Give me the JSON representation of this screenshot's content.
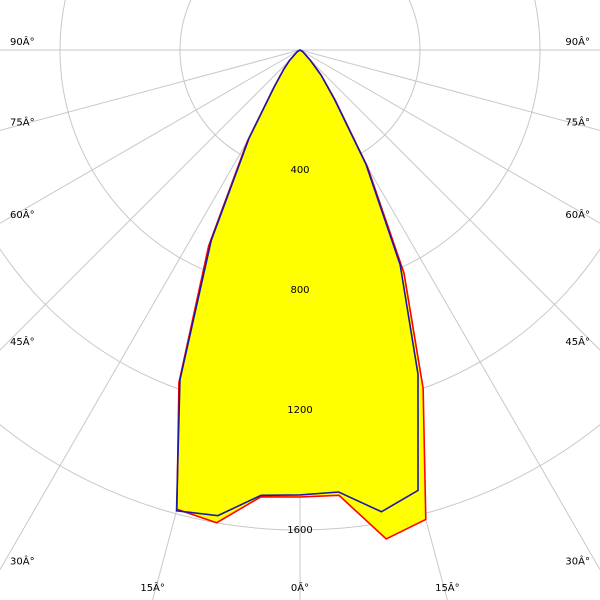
{
  "chart_data": {
    "type": "polar",
    "theta": [
      -90,
      -60,
      -45,
      -40,
      -35,
      -30,
      -25,
      -20,
      -15,
      -10,
      -5,
      0,
      5,
      10,
      15,
      20,
      25,
      30,
      35,
      40,
      45,
      60,
      90
    ],
    "series": [
      {
        "color": "#ff0000",
        "values": [
          0,
          10,
          50,
          85,
          150,
          350,
          720,
          1180,
          1585,
          1600,
          1495,
          1490,
          1490,
          1655,
          1620,
          1200,
          820,
          450,
          205,
          110,
          50,
          10,
          0
        ]
      },
      {
        "color": "#1a1aa6",
        "values": [
          0,
          10,
          50,
          85,
          150,
          340,
          700,
          1170,
          1590,
          1576,
          1490,
          1483,
          1479,
          1563,
          1520,
          1150,
          790,
          440,
          200,
          110,
          50,
          10,
          0
        ]
      }
    ],
    "fill_color": "#ffff00",
    "rlim": [
      0,
      1600
    ],
    "rticks": [
      400,
      800,
      1200,
      1600
    ],
    "thetaticks": [
      {
        "value": -90,
        "label": "90Â°"
      },
      {
        "value": -75,
        "label": "75Â°"
      },
      {
        "value": -60,
        "label": "60Â°"
      },
      {
        "value": -45,
        "label": "45Â°"
      },
      {
        "value": -30,
        "label": "30Â°"
      },
      {
        "value": -15,
        "label": "15Â°"
      },
      {
        "value": 0,
        "label": "0Â°"
      },
      {
        "value": 15,
        "label": "15Â°"
      },
      {
        "value": 30,
        "label": "30Â°"
      },
      {
        "value": 45,
        "label": "45Â°"
      },
      {
        "value": 60,
        "label": "60Â°"
      },
      {
        "value": 75,
        "label": "75Â°"
      },
      {
        "value": 90,
        "label": "90Â°"
      }
    ]
  }
}
